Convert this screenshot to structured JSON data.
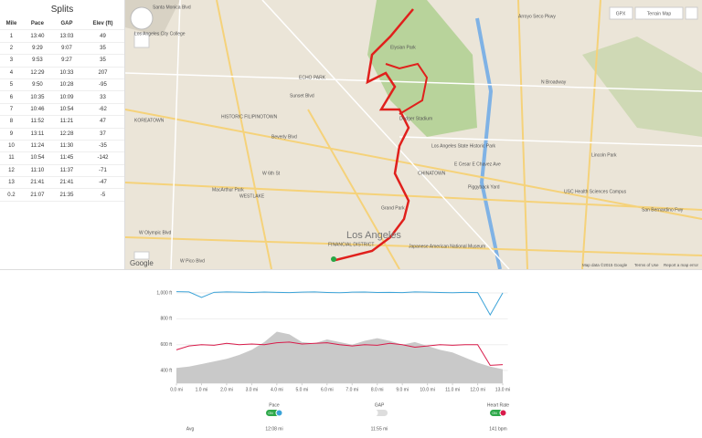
{
  "splits": {
    "title": "Splits",
    "headers": [
      "Mile",
      "Pace",
      "GAP",
      "Elev (ft)"
    ],
    "rows": [
      [
        "1",
        "13:40",
        "13:03",
        "49"
      ],
      [
        "2",
        "9:29",
        "9:07",
        "35"
      ],
      [
        "3",
        "9:53",
        "9:27",
        "35"
      ],
      [
        "4",
        "12:29",
        "10:33",
        "207"
      ],
      [
        "5",
        "9:50",
        "10:28",
        "-95"
      ],
      [
        "6",
        "10:35",
        "10:09",
        "33"
      ],
      [
        "7",
        "10:46",
        "10:54",
        "-62"
      ],
      [
        "8",
        "11:52",
        "11:21",
        "47"
      ],
      [
        "9",
        "13:11",
        "12:28",
        "37"
      ],
      [
        "10",
        "11:24",
        "11:30",
        "-35"
      ],
      [
        "11",
        "10:54",
        "11:45",
        "-142"
      ],
      [
        "12",
        "11:10",
        "11:37",
        "-71"
      ],
      [
        "13",
        "21:41",
        "21:41",
        "-47"
      ],
      [
        "0.2",
        "21:07",
        "21:35",
        "-5"
      ]
    ]
  },
  "map": {
    "gpx_button": "GPX",
    "map_type_button": "Terrain Map",
    "labels": [
      "Los Angeles",
      "CHINATOWN",
      "Los Angeles State Historic Park",
      "Elysian Park",
      "Dodger Stadium",
      "ECHO PARK",
      "HISTORIC FILIPINOTOWN",
      "KOREATOWN",
      "WESTLAKE",
      "MacArthur Park",
      "Lincoln Park",
      "USC Health Sciences Campus",
      "Piggyback Yard",
      "Japanese American National Museum",
      "Los Angeles City College",
      "Grand Park",
      "FINANCIAL DISTRICT",
      "W Olympic Blvd",
      "W Pico Blvd",
      "W 6th St",
      "Beverly Blvd",
      "Sunset Blvd",
      "N Broadway",
      "E Cesar E Chavez Ave",
      "San Bernardino Fwy",
      "Santa Monica Blvd",
      "Arroyo Seco Pkwy"
    ],
    "logo": "Google",
    "attribution": "Map data ©2015 Google",
    "terms": "Terms of Use",
    "report": "Report a map error"
  },
  "chart_data": {
    "type": "line",
    "x": [
      0,
      0.5,
      1,
      1.5,
      2,
      2.5,
      3,
      3.5,
      4,
      4.5,
      5,
      5.5,
      6,
      6.5,
      7,
      7.5,
      8,
      8.5,
      9,
      9.5,
      10,
      10.5,
      11,
      11.5,
      12,
      12.5,
      13
    ],
    "xlim": [
      0,
      13.2
    ],
    "xticks": [
      {
        "value": 0,
        "label": "0.0 mi"
      },
      {
        "value": 1,
        "label": "1.0 mi"
      },
      {
        "value": 2,
        "label": "2.0 mi"
      },
      {
        "value": 3,
        "label": "3.0 mi"
      },
      {
        "value": 4,
        "label": "4.0 mi"
      },
      {
        "value": 5,
        "label": "5.0 mi"
      },
      {
        "value": 6,
        "label": "6.0 mi"
      },
      {
        "value": 7,
        "label": "7.0 mi"
      },
      {
        "value": 8,
        "label": "8.0 mi"
      },
      {
        "value": 9,
        "label": "9.0 mi"
      },
      {
        "value": 10,
        "label": "10.0 mi"
      },
      {
        "value": 11,
        "label": "11.0 mi"
      },
      {
        "value": 12,
        "label": "12.0 mi"
      },
      {
        "value": 13,
        "label": "13.0 mi"
      }
    ],
    "ylim": [
      300,
      1080
    ],
    "yticks": [
      {
        "value": 400,
        "label": "400 ft"
      },
      {
        "value": 600,
        "label": "600 ft"
      },
      {
        "value": 800,
        "label": "800 ft"
      },
      {
        "value": 1000,
        "label": "1,000 ft"
      }
    ],
    "area": {
      "color": "#c9c9c9",
      "values": [
        420,
        430,
        450,
        470,
        490,
        520,
        560,
        620,
        700,
        680,
        620,
        610,
        640,
        620,
        600,
        630,
        650,
        630,
        600,
        620,
        590,
        560,
        540,
        500,
        460,
        430,
        410
      ]
    },
    "series": [
      {
        "name": "Pace",
        "color": "#3ba3d8",
        "toggle": "ON",
        "average": "12:08 mi",
        "values": [
          1010,
          1008,
          965,
          1005,
          1008,
          1006,
          1004,
          1007,
          1005,
          1003,
          1006,
          1008,
          1004,
          1002,
          1006,
          1007,
          1004,
          1005,
          1003,
          1008,
          1006,
          1004,
          1002,
          1005,
          1003,
          830,
          1000
        ]
      },
      {
        "name": "GAP",
        "average": "11:55 mi"
      },
      {
        "name": "Heart Rate",
        "color": "#d81b4a",
        "toggle": "ON",
        "average": "141 bpm",
        "values": [
          560,
          590,
          600,
          595,
          610,
          600,
          605,
          600,
          615,
          620,
          605,
          610,
          615,
          600,
          590,
          600,
          595,
          610,
          600,
          580,
          590,
          600,
          595,
          600,
          600,
          440,
          445
        ]
      }
    ],
    "average_label": "Avg"
  }
}
